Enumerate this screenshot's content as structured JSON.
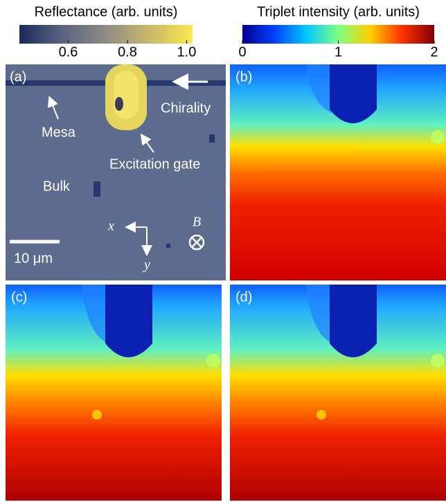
{
  "colorbars": [
    {
      "label": "Reflectance (arb. units)",
      "lim": [
        0.435,
        1.02
      ],
      "ticks": [
        0.6,
        0.8,
        {
          "value": 1,
          "label": "1.0"
        }
      ],
      "colors": [
        "#1b2a5c",
        "#5b6480",
        "#8e8c84",
        "#c8b86a",
        "#fbe84e"
      ]
    },
    {
      "label": "Triplet intensity (arb. units)",
      "lim": [
        0,
        2
      ],
      "ticks": [
        0,
        1,
        2
      ],
      "colors": [
        "#00008f",
        "#0040ff",
        "#00c8ff",
        "#80ff80",
        "#ffd000",
        "#ff3000",
        "#800000"
      ]
    }
  ],
  "panels": [
    {
      "label": "(a)",
      "annotations": [
        "Mesa",
        "Chirality",
        "Excitation gate",
        "Bulk",
        "10 μm",
        "x",
        "y",
        "B"
      ]
    },
    {
      "label": "(b)"
    },
    {
      "label": "(c)"
    },
    {
      "label": "(d)"
    }
  ]
}
